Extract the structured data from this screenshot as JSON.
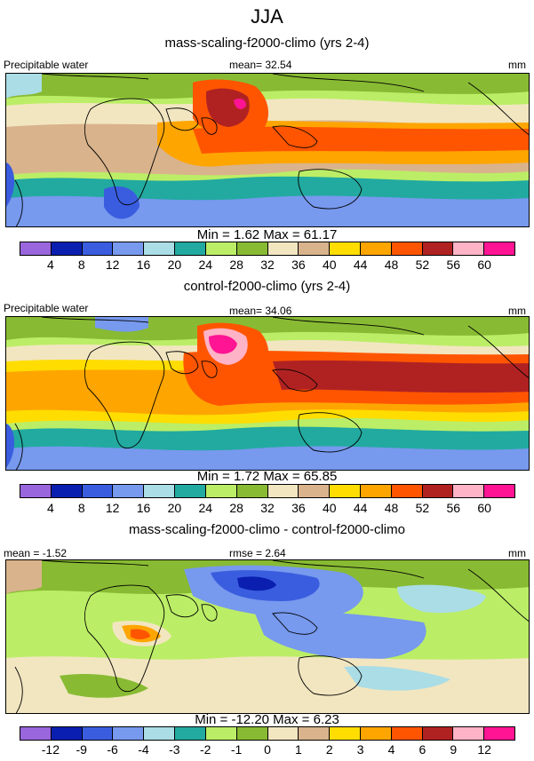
{
  "figure_title": "JJA",
  "colors_abs": [
    "#9966dd",
    "#0a1fb0",
    "#3a5ddf",
    "#7799ee",
    "#aadde6",
    "#22aaa0",
    "#bbee66",
    "#88bb33",
    "#f2e6c0",
    "#d9b38c",
    "#ffdd00",
    "#ffa500",
    "#ff5500",
    "#b02222",
    "#ffb3c6",
    "#ff1493"
  ],
  "colors_diff": [
    "#9966dd",
    "#0a1fb0",
    "#3a5ddf",
    "#7799ee",
    "#aadde6",
    "#22aaa0",
    "#bbee66",
    "#88bb33",
    "#f2e6c0",
    "#d9b38c",
    "#ffdd00",
    "#ffa500",
    "#ff5500",
    "#b02222",
    "#ffb3c6",
    "#ff1493"
  ],
  "panels": [
    {
      "title": "mass-scaling-f2000-climo (yrs 2-4)",
      "left_label": "Precipitable water",
      "center_label": "mean=  32.54",
      "right_label": "mm",
      "minmax": "Min =   1.62 Max =  61.17",
      "ticks": [
        "4",
        "8",
        "12",
        "16",
        "20",
        "24",
        "28",
        "32",
        "36",
        "40",
        "44",
        "48",
        "52",
        "56",
        "60"
      ]
    },
    {
      "title": "control-f2000-climo (yrs 2-4)",
      "left_label": "Precipitable water",
      "center_label": "mean=  34.06",
      "right_label": "mm",
      "minmax": "Min =   1.72 Max =  65.85",
      "ticks": [
        "4",
        "8",
        "12",
        "16",
        "20",
        "24",
        "28",
        "32",
        "36",
        "40",
        "44",
        "48",
        "52",
        "56",
        "60"
      ]
    },
    {
      "title": "mass-scaling-f2000-climo - control-f2000-climo",
      "left_label": "mean = -1.52",
      "center_label": "rmse =  2.64",
      "right_label": "mm",
      "minmax": "Min = -12.20 Max =   6.23",
      "ticks": [
        "-12",
        "-9",
        "-6",
        "-4",
        "-3",
        "-2",
        "-1",
        "0",
        "1",
        "2",
        "3",
        "4",
        "6",
        "9",
        "12"
      ]
    }
  ]
}
